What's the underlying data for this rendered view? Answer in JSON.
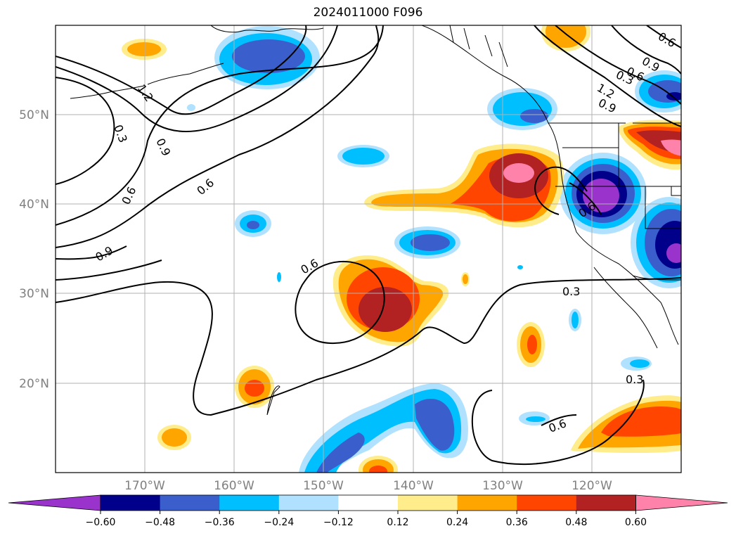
{
  "title": "2024011000 F096",
  "map": {
    "lat_ticks": [
      "50°N",
      "40°N",
      "30°N",
      "20°N"
    ],
    "lon_ticks": [
      "170°W",
      "160°W",
      "150°W",
      "140°W",
      "130°W",
      "120°W"
    ],
    "contour_labels": [
      "1.2",
      "1.2",
      "0.9",
      "0.9",
      "0.9",
      "0.6",
      "0.6",
      "0.3",
      "0.3",
      "0.6",
      "0.6",
      "0.6",
      "0.9",
      "0.3",
      "0.3",
      "0.6",
      "0.6"
    ]
  },
  "colorbar": {
    "ticks": [
      "−0.60",
      "−0.48",
      "−0.36",
      "−0.24",
      "−0.12",
      "0.12",
      "0.24",
      "0.36",
      "0.48",
      "0.60"
    ],
    "colors": [
      "#9933cc",
      "#00008b",
      "#3a5fcd",
      "#00bfff",
      "#b0e2ff",
      "#ffffff",
      "#ffec8b",
      "#ffa500",
      "#ff4500",
      "#b22222",
      "#ff82ab"
    ]
  }
}
